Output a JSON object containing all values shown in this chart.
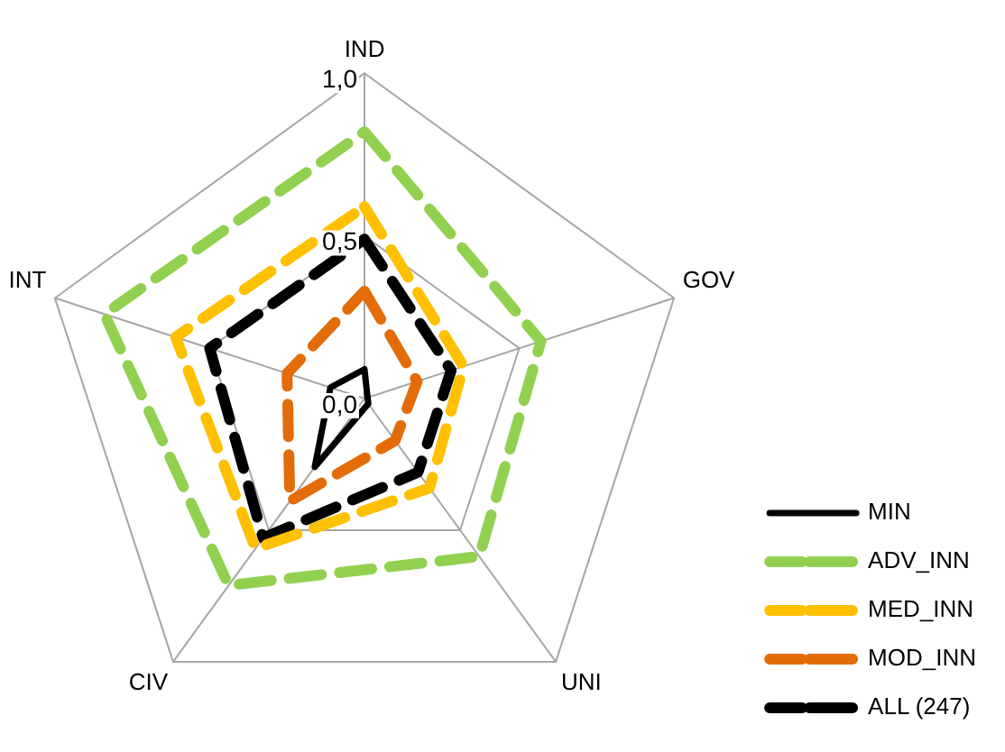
{
  "chart_data": {
    "type": "radar",
    "categories": [
      "IND",
      "GOV",
      "UNI",
      "CIV",
      "INT"
    ],
    "series": [
      {
        "name": "MIN",
        "color": "#000000",
        "line_style": "solid",
        "values": [
          0.09,
          0.01,
          0.02,
          0.26,
          0.11
        ]
      },
      {
        "name": "ADV_INN",
        "color": "#92d050",
        "line_style": "dashed",
        "values": [
          0.82,
          0.57,
          0.6,
          0.71,
          0.84
        ]
      },
      {
        "name": "MED_INN",
        "color": "#ffc000",
        "line_style": "dashed",
        "values": [
          0.59,
          0.32,
          0.34,
          0.57,
          0.61
        ]
      },
      {
        "name": "MOD_INN",
        "color": "#e36c09",
        "line_style": "dashed",
        "values": [
          0.33,
          0.17,
          0.16,
          0.39,
          0.25
        ]
      },
      {
        "name": "ALL (247)",
        "color": "#000000",
        "line_style": "dashed",
        "values": [
          0.49,
          0.28,
          0.28,
          0.53,
          0.5
        ]
      }
    ],
    "ylim": [
      0,
      1
    ],
    "yticks": [
      {
        "value": 0,
        "label": "0,0"
      },
      {
        "value": 0.5,
        "label": "0,5"
      },
      {
        "value": 1,
        "label": "1,0"
      }
    ],
    "grid": true,
    "legend": "bottom right",
    "marker": "none"
  }
}
